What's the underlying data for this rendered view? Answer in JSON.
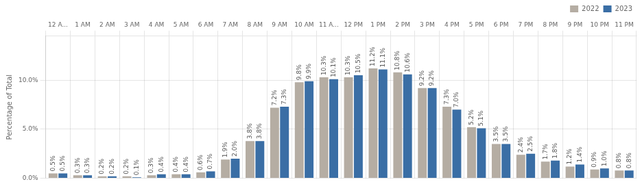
{
  "chart_data": {
    "type": "bar",
    "categories": [
      "12 A...",
      "1 AM",
      "2 AM",
      "3 AM",
      "4 AM",
      "5 AM",
      "6 AM",
      "7 AM",
      "8 AM",
      "9 AM",
      "10 AM",
      "11 A...",
      "12 PM",
      "1 PM",
      "2 PM",
      "3 PM",
      "4 PM",
      "5 PM",
      "6 PM",
      "7 PM",
      "8 PM",
      "9 PM",
      "10 PM",
      "11 PM"
    ],
    "series": [
      {
        "name": "2022",
        "color": "#b5ada3",
        "values": [
          0.5,
          0.3,
          0.2,
          0.2,
          0.3,
          0.4,
          0.6,
          1.9,
          3.8,
          7.2,
          9.8,
          10.3,
          10.3,
          11.2,
          10.8,
          9.2,
          7.3,
          5.2,
          3.5,
          2.4,
          1.7,
          1.2,
          0.9,
          0.8
        ],
        "value_labels": [
          "0.5%",
          "0.3%",
          "0.2%",
          "0.2%",
          "0.3%",
          "0.4%",
          "0.6%",
          "1.9%",
          "3.8%",
          "7.2%",
          "9.8%",
          "10.3%",
          "10.3%",
          "11.2%",
          "10.8%",
          "9.2%",
          "7.3%",
          "5.2%",
          "3.5%",
          "2.4%",
          "1.7%",
          "1.2%",
          "0.9%",
          "0.8%"
        ]
      },
      {
        "name": "2023",
        "color": "#3a6ea5",
        "values": [
          0.5,
          0.3,
          0.2,
          0.1,
          0.4,
          0.4,
          0.7,
          2.0,
          3.8,
          7.3,
          9.9,
          10.1,
          10.5,
          11.1,
          10.6,
          9.2,
          7.0,
          5.1,
          3.5,
          2.5,
          1.8,
          1.4,
          1.0,
          0.8
        ],
        "value_labels": [
          "0.5%",
          "0.3%",
          "0.2%",
          "0.1%",
          "0.4%",
          "0.4%",
          "0.7%",
          "2.0%",
          "3.8%",
          "7.3%",
          "9.9%",
          "10.1%",
          "10.5%",
          "11.1%",
          "10.6%",
          "9.2%",
          "7.0%",
          "5.1%",
          "3.5%",
          "2.5%",
          "1.8%",
          "1.4%",
          "1.0%",
          "0.8%"
        ]
      }
    ],
    "ylabel": "Percentage of Total",
    "ylim": [
      0,
      14.5
    ],
    "yticks": [
      {
        "value": 0,
        "label": "0.0%"
      },
      {
        "value": 5,
        "label": "5.0%"
      },
      {
        "value": 10,
        "label": "10.0%"
      }
    ],
    "grid": true,
    "legend": "upper right",
    "data_labels": true
  }
}
